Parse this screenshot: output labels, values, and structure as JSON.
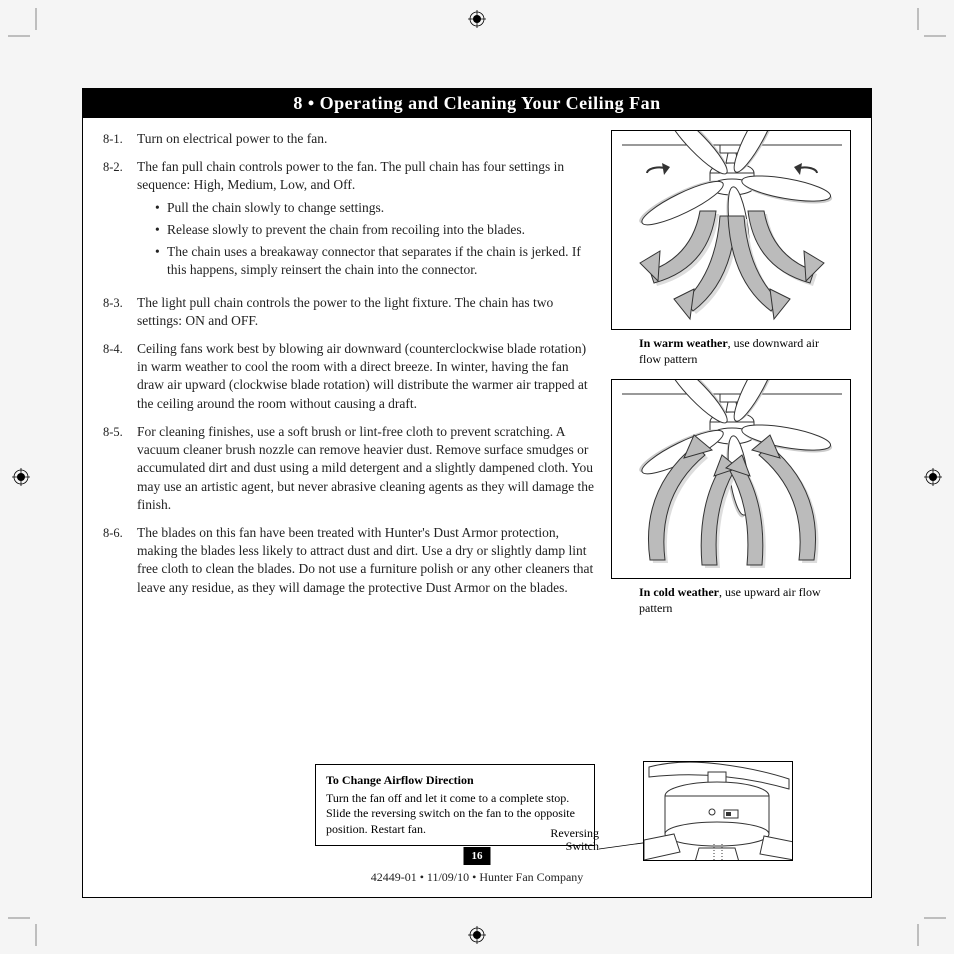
{
  "section_header": "8 • Operating and Cleaning Your Ceiling Fan",
  "steps": [
    {
      "num": "8-1.",
      "body": "Turn on electrical power to the fan.",
      "bullets": []
    },
    {
      "num": "8-2.",
      "body": "The fan pull chain controls power to the fan. The pull chain has four settings in sequence: High, Medium, Low, and Off.",
      "bullets": [
        "Pull the chain slowly to change settings.",
        "Release slowly to prevent the chain from recoiling into the blades.",
        "The chain uses a breakaway connector that separates if the chain is jerked. If this happens, simply reinsert the chain into the connector."
      ]
    },
    {
      "num": "8-3.",
      "body": "The light pull chain controls the power to the light fixture. The chain has two settings: ON and OFF.",
      "bullets": []
    },
    {
      "num": "8-4.",
      "body": "Ceiling fans work best by blowing air downward (counterclockwise blade rotation) in warm weather to cool the room with a direct breeze. In winter, having the fan draw air upward (clockwise blade rotation) will distribute the warmer air trapped at the ceiling around the room without causing a draft.",
      "bullets": []
    },
    {
      "num": "8-5.",
      "body": "For cleaning finishes, use a soft brush or lint-free cloth to prevent scratching. A vacuum cleaner brush nozzle can remove heavier dust. Remove surface smudges or accumulated dirt and dust using a mild detergent and a slightly dampened cloth. You may use an artistic agent, but never abrasive cleaning agents as they will damage the finish.",
      "bullets": []
    },
    {
      "num": "8-6.",
      "body": "The blades on this fan have been treated with Hunter's Dust Armor protection, making the blades less likely to attract dust and dirt. Use a dry or slightly damp lint free cloth to clean the blades. Do not use a furniture polish or any other cleaners that leave any residue, as they will damage the protective Dust Armor on the blades.",
      "bullets": []
    }
  ],
  "caption_warm_bold": "In warm weather",
  "caption_warm_rest": ", use downward air flow pattern",
  "caption_cold_bold": "In cold weather",
  "caption_cold_rest": ", use upward air flow pattern",
  "airflow_title": "To Change Airflow Direction",
  "airflow_body": "Turn the fan off and let it come to a complete stop. Slide the reversing switch on the fan to the opposite position. Restart fan.",
  "rev_switch_label_l1": "Reversing",
  "rev_switch_label_l2": "Switch",
  "page_number": "16",
  "footer": "42449-01  •  11/09/10  •  Hunter Fan Company"
}
